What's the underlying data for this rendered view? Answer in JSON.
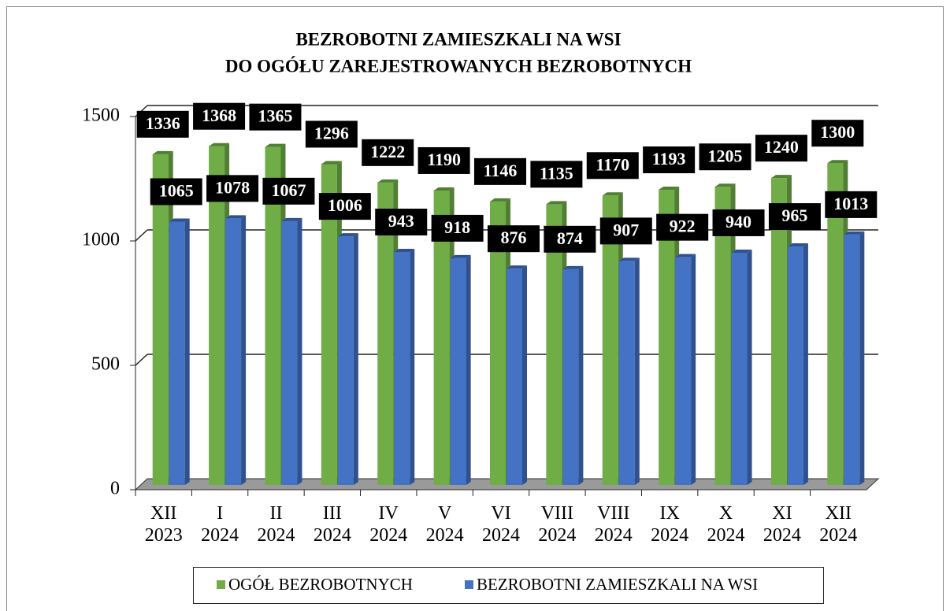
{
  "chart_data": {
    "type": "bar",
    "title": [
      "BEZROBOTNI ZAMIESZKALI NA WSI",
      "DO OGÓŁU ZAREJESTROWANYCH BEZROBOTNYCH"
    ],
    "categories": [
      "XII 2023",
      "I 2024",
      "II 2024",
      "III 2024",
      "IV 2024",
      "V 2024",
      "VI 2024",
      "VIII 2024",
      "VIII 2024",
      "IX 2024",
      "X 2024",
      "XI 2024",
      "XII 2024"
    ],
    "series": [
      {
        "name": "OGÓŁ BEZROBOTNYCH",
        "color": "#70ad47",
        "side": "#507e32",
        "values": [
          1336,
          1368,
          1365,
          1296,
          1222,
          1190,
          1146,
          1135,
          1170,
          1193,
          1205,
          1240,
          1300
        ]
      },
      {
        "name": "BEZROBOTNI ZAMIESZKALI NA WSI",
        "color": "#4472c4",
        "side": "#2f528f",
        "values": [
          1065,
          1078,
          1067,
          1006,
          943,
          918,
          876,
          874,
          907,
          922,
          940,
          965,
          1013
        ]
      }
    ],
    "ylim": [
      0,
      1500
    ],
    "yticks": [
      0,
      500,
      1000,
      1500
    ],
    "grid": true,
    "legend": "bottom"
  }
}
